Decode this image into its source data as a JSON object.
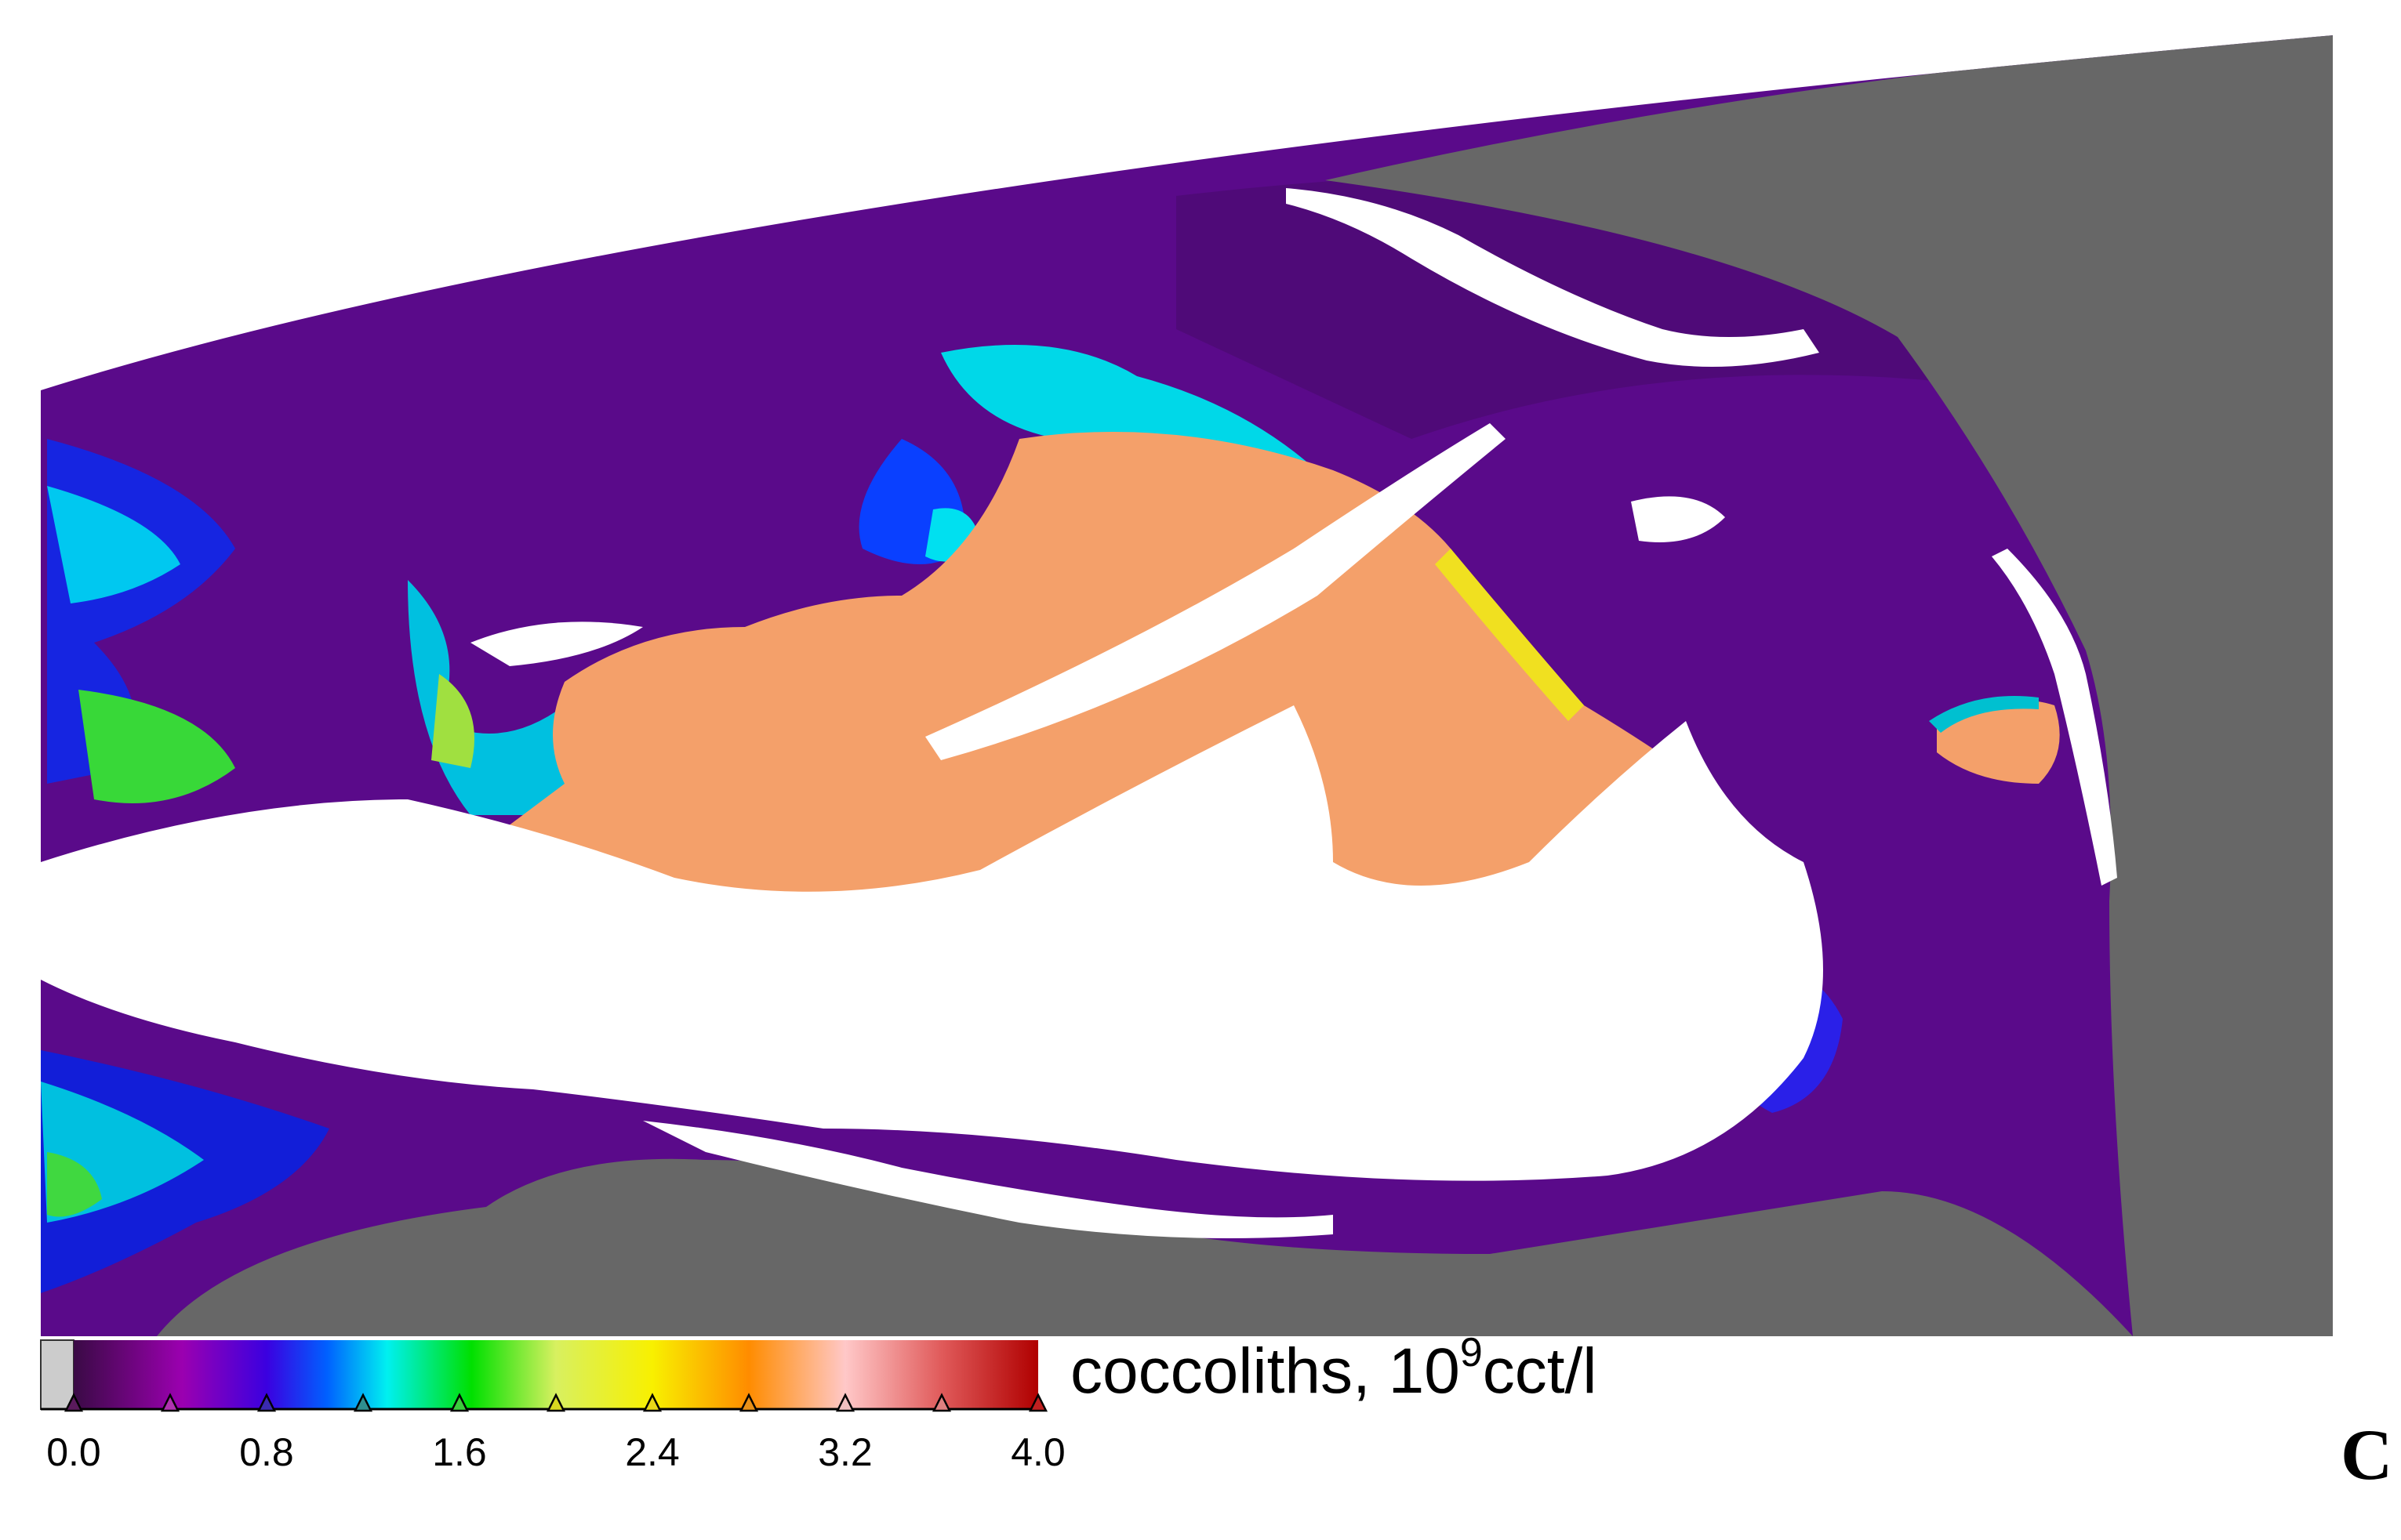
{
  "colorbar": {
    "min": 0.0,
    "max": 4.0,
    "tick_labels": [
      "0.0",
      "0.8",
      "1.6",
      "2.4",
      "3.2",
      "4.0"
    ],
    "tick_values": [
      0.0,
      0.8,
      1.6,
      2.4,
      3.2,
      4.0
    ],
    "marker_values": [
      0.0,
      0.4,
      0.8,
      1.2,
      1.6,
      2.0,
      2.4,
      2.8,
      3.2,
      3.6,
      4.0
    ],
    "marker_colors": [
      "#5a1a5c",
      "#b033b0",
      "#3a2ab0",
      "#2f8f8f",
      "#3ccc3c",
      "#d8d820",
      "#e8d818",
      "#e89018",
      "#f0c0c0",
      "#e08080",
      "#c02020"
    ],
    "stops": [
      {
        "v": 0.0,
        "color": "#3a0a45"
      },
      {
        "v": 0.45,
        "color": "#9b00b0"
      },
      {
        "v": 0.8,
        "color": "#3b00e0"
      },
      {
        "v": 1.05,
        "color": "#0060ff"
      },
      {
        "v": 1.3,
        "color": "#00f0f0"
      },
      {
        "v": 1.65,
        "color": "#00e000"
      },
      {
        "v": 2.0,
        "color": "#d8f060"
      },
      {
        "v": 2.4,
        "color": "#f8f000"
      },
      {
        "v": 2.8,
        "color": "#ff8c00"
      },
      {
        "v": 3.2,
        "color": "#ffc8c8"
      },
      {
        "v": 3.6,
        "color": "#e05a5a"
      },
      {
        "v": 4.0,
        "color": "#b00000"
      }
    ]
  },
  "unit_label": {
    "prefix": "coccoliths, 10",
    "exponent": "9",
    "suffix": "cct/l"
  },
  "panel_letter": "C",
  "colors": {
    "land": "#676767",
    "cloud": "#ffffff",
    "low_concentration": "#5a0a8a",
    "high_concentration": "#f4a06a",
    "no_data_swatch": "#cccccc"
  }
}
